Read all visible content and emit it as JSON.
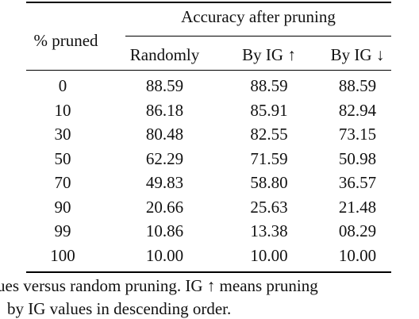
{
  "table": {
    "col_pruned": "% pruned",
    "group_header": "Accuracy after pruning",
    "col_randomly": "Randomly",
    "col_ig_up": "By IG ↑",
    "col_ig_down": "By IG ↓",
    "rows": [
      {
        "pruned": "0",
        "randomly": "88.59",
        "ig_up": "88.59",
        "ig_down": "88.59"
      },
      {
        "pruned": "10",
        "randomly": "86.18",
        "ig_up": "85.91",
        "ig_down": "82.94"
      },
      {
        "pruned": "30",
        "randomly": "80.48",
        "ig_up": "82.55",
        "ig_down": "73.15"
      },
      {
        "pruned": "50",
        "randomly": "62.29",
        "ig_up": "71.59",
        "ig_down": "50.98"
      },
      {
        "pruned": "70",
        "randomly": "49.83",
        "ig_up": "58.80",
        "ig_down": "36.57"
      },
      {
        "pruned": "90",
        "randomly": "20.66",
        "ig_up": "25.63",
        "ig_down": "21.48"
      },
      {
        "pruned": "99",
        "randomly": "10.86",
        "ig_up": "13.38",
        "ig_down": "08.29"
      },
      {
        "pruned": "100",
        "randomly": "10.00",
        "ig_up": "10.00",
        "ig_down": "10.00"
      }
    ]
  },
  "caption": {
    "line1": "ues versus random pruning. IG ↑ means pruning",
    "line2": "by IG values in descending order."
  }
}
